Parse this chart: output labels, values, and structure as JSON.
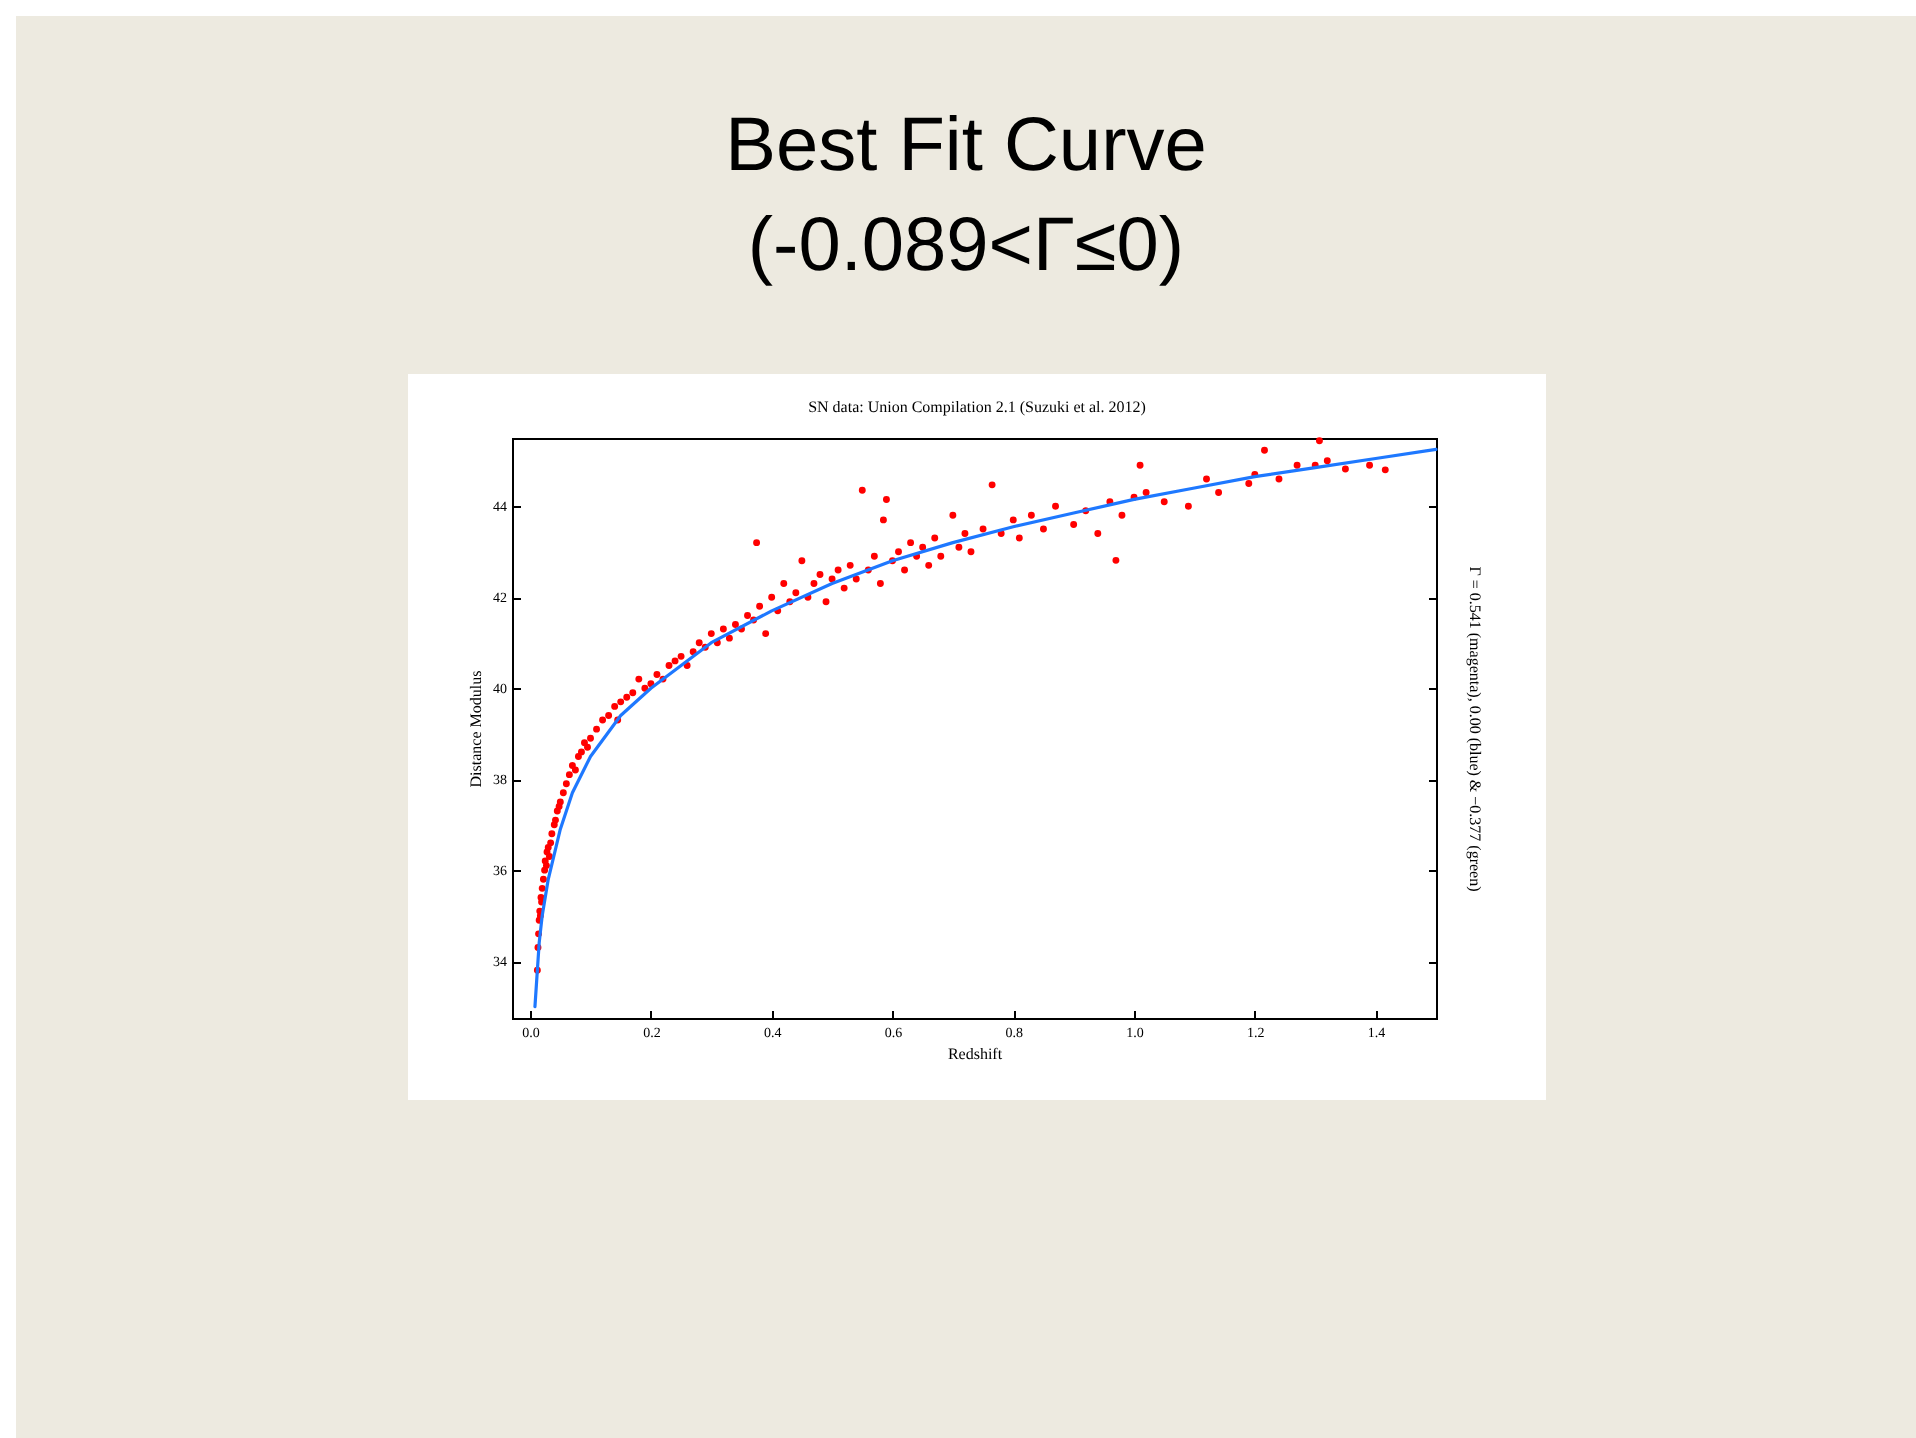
{
  "chart_data": {
    "type": "scatter",
    "title": "Best Fit Curve",
    "subtitle": "(-0.089<Γ≤0)",
    "annotations": [
      "SN data: Union Compilation 2.1 (Suzuki et al. 2012)"
    ],
    "xlabel": "Redshift",
    "ylabel": "Distance Modulus",
    "y2label": "Γ = 0.541 (magenta), 0.00 (blue) & −0.377 (green)",
    "xlim": [
      -0.03,
      1.5
    ],
    "ylim": [
      32.75,
      45.5
    ],
    "xticks": [
      {
        "value": 0,
        "label": "0.0"
      },
      0.2,
      0.4,
      0.6,
      0.8,
      {
        "value": 1,
        "label": "1.0"
      },
      1.2,
      1.4
    ],
    "yticks": [
      34,
      36,
      38,
      40,
      42,
      44
    ],
    "grid": false,
    "marker": "circle",
    "series": [
      {
        "color": "#ff0000",
        "x": [
          0.012,
          0.013,
          0.014,
          0.015,
          0.016,
          0.017,
          0.018,
          0.019,
          0.02,
          0.022,
          0.024,
          0.025,
          0.027,
          0.028,
          0.03,
          0.032,
          0.034,
          0.036,
          0.04,
          0.042,
          0.045,
          0.048,
          0.05,
          0.055,
          0.06,
          0.065,
          0.07,
          0.075,
          0.08,
          0.085,
          0.09,
          0.095,
          0.1,
          0.11,
          0.12,
          0.13,
          0.14,
          0.145,
          0.15,
          0.16,
          0.17,
          0.18,
          0.19,
          0.2,
          0.21,
          0.22,
          0.23,
          0.24,
          0.25,
          0.26,
          0.27,
          0.28,
          0.29,
          0.3,
          0.31,
          0.32,
          0.33,
          0.34,
          0.35,
          0.36,
          0.37,
          0.375,
          0.38,
          0.39,
          0.4,
          0.41,
          0.42,
          0.43,
          0.44,
          0.45,
          0.46,
          0.47,
          0.48,
          0.49,
          0.5,
          0.51,
          0.52,
          0.53,
          0.54,
          0.55,
          0.56,
          0.57,
          0.58,
          0.585,
          0.59,
          0.6,
          0.61,
          0.62,
          0.63,
          0.64,
          0.65,
          0.66,
          0.67,
          0.68,
          0.7,
          0.71,
          0.72,
          0.73,
          0.75,
          0.765,
          0.78,
          0.8,
          0.81,
          0.83,
          0.85,
          0.87,
          0.9,
          0.92,
          0.94,
          0.96,
          0.97,
          0.98,
          1.0,
          1.01,
          1.02,
          1.05,
          1.09,
          1.12,
          1.14,
          1.19,
          1.2,
          1.216,
          1.24,
          1.27,
          1.3,
          1.307,
          1.32,
          1.35,
          1.39,
          1.416
        ],
        "values": [
          33.8,
          34.3,
          34.6,
          34.9,
          35.1,
          35.0,
          35.4,
          35.3,
          35.6,
          35.8,
          36.0,
          36.2,
          36.1,
          36.4,
          36.5,
          36.3,
          36.6,
          36.8,
          37.0,
          37.1,
          37.3,
          37.4,
          37.5,
          37.7,
          37.9,
          38.1,
          38.3,
          38.2,
          38.5,
          38.6,
          38.8,
          38.7,
          38.9,
          39.1,
          39.3,
          39.4,
          39.6,
          39.3,
          39.7,
          39.8,
          39.9,
          40.2,
          40.0,
          40.1,
          40.3,
          40.2,
          40.5,
          40.6,
          40.7,
          40.5,
          40.8,
          41.0,
          40.9,
          41.2,
          41.0,
          41.3,
          41.1,
          41.4,
          41.3,
          41.6,
          41.5,
          43.2,
          41.8,
          41.2,
          42.0,
          41.7,
          42.3,
          41.9,
          42.1,
          42.8,
          42.0,
          42.3,
          42.5,
          41.9,
          42.4,
          42.6,
          42.2,
          42.7,
          42.4,
          44.35,
          42.6,
          42.9,
          42.3,
          43.7,
          44.15,
          42.8,
          43.0,
          42.6,
          43.2,
          42.9,
          43.1,
          42.7,
          43.3,
          42.9,
          43.8,
          43.1,
          43.4,
          43.0,
          43.5,
          44.47,
          43.4,
          43.7,
          43.3,
          43.8,
          43.5,
          44.0,
          43.6,
          43.9,
          43.4,
          44.1,
          42.81,
          43.8,
          44.2,
          44.9,
          44.3,
          44.1,
          44.0,
          44.6,
          44.3,
          44.5,
          44.7,
          45.23,
          44.6,
          44.9,
          44.9,
          45.44,
          45.0,
          44.82,
          44.9,
          44.8
        ]
      },
      {
        "type": "line",
        "color": "#1e78ff",
        "marker": "none",
        "line_style": "solid",
        "x": [
          0.008,
          0.015,
          0.02,
          0.03,
          0.05,
          0.07,
          0.1,
          0.15,
          0.2,
          0.25,
          0.3,
          0.4,
          0.5,
          0.6,
          0.7,
          0.8,
          0.9,
          1.0,
          1.1,
          1.2,
          1.3,
          1.4,
          1.5
        ],
        "values": [
          33.0,
          34.4,
          35.0,
          35.8,
          36.9,
          37.7,
          38.5,
          39.4,
          40.0,
          40.5,
          41.0,
          41.7,
          42.3,
          42.8,
          43.2,
          43.55,
          43.85,
          44.15,
          44.4,
          44.65,
          44.85,
          45.05,
          45.25
        ]
      }
    ]
  }
}
